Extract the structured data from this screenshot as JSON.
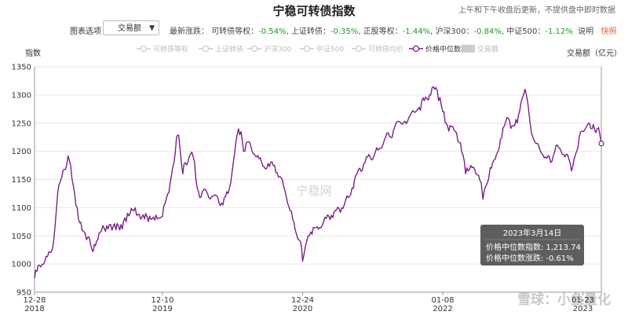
{
  "header": {
    "title": "宁稳可转债指数",
    "note": "上午和下午收盘后更新，不提供盘中即时数据"
  },
  "controls": {
    "selector_label": "图表选项",
    "selector_value": "交易额",
    "changes_prefix": "最新涨跌：",
    "changes": [
      {
        "label": "可转债等权：",
        "value": "-0.54%"
      },
      {
        "label": "上证转债：",
        "value": "-0.35%"
      },
      {
        "label": "正股等权：",
        "value": "-1.44%"
      },
      {
        "label": "沪深300：",
        "value": "-0.84%"
      },
      {
        "label": "中证500：",
        "value": "-1.12%"
      }
    ],
    "help_link": "说明",
    "snapshot_link": "快照"
  },
  "legend": [
    {
      "name": "可转债等权",
      "active": false
    },
    {
      "name": "上证转债",
      "active": false
    },
    {
      "name": "沪深300",
      "active": false
    },
    {
      "name": "中证500",
      "active": false
    },
    {
      "name": "可转债均价",
      "active": false
    },
    {
      "name": "价格中位数",
      "active": true
    },
    {
      "name": "交易额",
      "active": false
    }
  ],
  "colors": {
    "series": "#7b1f8c",
    "inactive": "#cccccc",
    "grid": "#e6e6e6",
    "tooltip_bg": "#555555"
  },
  "watermark": "宁稳网",
  "corner_watermark": "雪球：小鱼量化",
  "tooltip": {
    "date": "2023年3月14日",
    "line1_label": "价格中位数指数:",
    "line1_value": "1,213.74",
    "line2_label": "价格中位数涨跌:",
    "line2_value": "-0.61%"
  },
  "chart_data": {
    "type": "line",
    "ylabel": "指数",
    "y2label": "交易额（亿元）",
    "ylim": [
      950,
      1350
    ],
    "yticks": [
      950,
      1000,
      1050,
      1100,
      1150,
      1200,
      1250,
      1300,
      1350
    ],
    "xlim": [
      "2018-12-28",
      "2023-03-14"
    ],
    "xticks": [
      {
        "date": "2018-12-28",
        "label": "12-28",
        "year": "2018"
      },
      {
        "date": "2019-12-10",
        "label": "12-10",
        "year": "2019"
      },
      {
        "date": "2020-12-24",
        "label": "12-24",
        "year": "2020"
      },
      {
        "date": "2022-01-08",
        "label": "01-08",
        "year": "2022"
      },
      {
        "date": "2023-01-23",
        "label": "01-23",
        "year": "2023"
      }
    ],
    "grid": true,
    "series": [
      {
        "name": "价格中位数",
        "points": [
          [
            "2018-12-28",
            975
          ],
          [
            "2019-01-10",
            998
          ],
          [
            "2019-01-25",
            1005
          ],
          [
            "2019-02-12",
            1022
          ],
          [
            "2019-02-22",
            1070
          ],
          [
            "2019-03-04",
            1140
          ],
          [
            "2019-03-12",
            1155
          ],
          [
            "2019-03-22",
            1168
          ],
          [
            "2019-03-29",
            1192
          ],
          [
            "2019-04-05",
            1175
          ],
          [
            "2019-04-12",
            1140
          ],
          [
            "2019-04-19",
            1105
          ],
          [
            "2019-04-26",
            1080
          ],
          [
            "2019-05-06",
            1060
          ],
          [
            "2019-05-14",
            1055
          ],
          [
            "2019-05-22",
            1048
          ],
          [
            "2019-05-29",
            1035
          ],
          [
            "2019-06-05",
            1022
          ],
          [
            "2019-06-14",
            1040
          ],
          [
            "2019-06-28",
            1060
          ],
          [
            "2019-07-12",
            1068
          ],
          [
            "2019-07-26",
            1060
          ],
          [
            "2019-08-09",
            1072
          ],
          [
            "2019-08-23",
            1062
          ],
          [
            "2019-09-06",
            1090
          ],
          [
            "2019-09-20",
            1095
          ],
          [
            "2019-10-08",
            1088
          ],
          [
            "2019-10-22",
            1080
          ],
          [
            "2019-11-05",
            1085
          ],
          [
            "2019-11-19",
            1078
          ],
          [
            "2019-12-03",
            1082
          ],
          [
            "2019-12-10",
            1085
          ],
          [
            "2019-12-20",
            1115
          ],
          [
            "2019-12-31",
            1145
          ],
          [
            "2020-01-10",
            1180
          ],
          [
            "2020-01-17",
            1225
          ],
          [
            "2020-01-23",
            1228
          ],
          [
            "2020-02-03",
            1160
          ],
          [
            "2020-02-10",
            1180
          ],
          [
            "2020-02-24",
            1195
          ],
          [
            "2020-03-06",
            1180
          ],
          [
            "2020-03-13",
            1135
          ],
          [
            "2020-03-20",
            1118
          ],
          [
            "2020-03-27",
            1128
          ],
          [
            "2020-04-10",
            1125
          ],
          [
            "2020-04-24",
            1120
          ],
          [
            "2020-05-08",
            1118
          ],
          [
            "2020-05-22",
            1105
          ],
          [
            "2020-06-05",
            1125
          ],
          [
            "2020-06-19",
            1180
          ],
          [
            "2020-07-03",
            1240
          ],
          [
            "2020-07-10",
            1235
          ],
          [
            "2020-07-17",
            1200
          ],
          [
            "2020-07-24",
            1215
          ],
          [
            "2020-08-07",
            1205
          ],
          [
            "2020-08-21",
            1190
          ],
          [
            "2020-09-04",
            1180
          ],
          [
            "2020-09-18",
            1170
          ],
          [
            "2020-10-09",
            1175
          ],
          [
            "2020-10-23",
            1155
          ],
          [
            "2020-11-06",
            1130
          ],
          [
            "2020-11-20",
            1095
          ],
          [
            "2020-12-04",
            1060
          ],
          [
            "2020-12-18",
            1040
          ],
          [
            "2020-12-24",
            1005
          ],
          [
            "2020-12-31",
            1030
          ],
          [
            "2021-01-08",
            1050
          ],
          [
            "2021-01-22",
            1065
          ],
          [
            "2021-02-05",
            1062
          ],
          [
            "2021-02-19",
            1075
          ],
          [
            "2021-03-05",
            1085
          ],
          [
            "2021-03-19",
            1092
          ],
          [
            "2021-04-02",
            1098
          ],
          [
            "2021-04-16",
            1105
          ],
          [
            "2021-04-30",
            1120
          ],
          [
            "2021-05-14",
            1150
          ],
          [
            "2021-05-28",
            1170
          ],
          [
            "2021-06-11",
            1180
          ],
          [
            "2021-06-25",
            1190
          ],
          [
            "2021-07-09",
            1198
          ],
          [
            "2021-07-23",
            1205
          ],
          [
            "2021-08-06",
            1225
          ],
          [
            "2021-08-20",
            1225
          ],
          [
            "2021-09-03",
            1250
          ],
          [
            "2021-09-17",
            1250
          ],
          [
            "2021-10-08",
            1260
          ],
          [
            "2021-10-22",
            1270
          ],
          [
            "2021-11-05",
            1278
          ],
          [
            "2021-11-19",
            1290
          ],
          [
            "2021-12-03",
            1300
          ],
          [
            "2021-12-17",
            1310
          ],
          [
            "2021-12-24",
            1308
          ],
          [
            "2022-01-08",
            1270
          ],
          [
            "2022-01-21",
            1245
          ],
          [
            "2022-02-11",
            1235
          ],
          [
            "2022-02-25",
            1215
          ],
          [
            "2022-03-11",
            1160
          ],
          [
            "2022-03-25",
            1175
          ],
          [
            "2022-04-08",
            1160
          ],
          [
            "2022-04-22",
            1145
          ],
          [
            "2022-04-27",
            1115
          ],
          [
            "2022-05-06",
            1140
          ],
          [
            "2022-05-20",
            1170
          ],
          [
            "2022-06-03",
            1195
          ],
          [
            "2022-06-17",
            1225
          ],
          [
            "2022-06-24",
            1245
          ],
          [
            "2022-07-01",
            1260
          ],
          [
            "2022-07-15",
            1245
          ],
          [
            "2022-07-29",
            1250
          ],
          [
            "2022-08-12",
            1295
          ],
          [
            "2022-08-19",
            1310
          ],
          [
            "2022-09-02",
            1250
          ],
          [
            "2022-09-16",
            1215
          ],
          [
            "2022-09-30",
            1200
          ],
          [
            "2022-10-14",
            1190
          ],
          [
            "2022-10-28",
            1180
          ],
          [
            "2022-11-11",
            1210
          ],
          [
            "2022-11-25",
            1200
          ],
          [
            "2022-12-09",
            1195
          ],
          [
            "2022-12-23",
            1165
          ],
          [
            "2022-12-30",
            1185
          ],
          [
            "2023-01-06",
            1200
          ],
          [
            "2023-01-13",
            1225
          ],
          [
            "2023-01-23",
            1235
          ],
          [
            "2023-02-03",
            1245
          ],
          [
            "2023-02-10",
            1250
          ],
          [
            "2023-02-17",
            1240
          ],
          [
            "2023-02-24",
            1238
          ],
          [
            "2023-03-03",
            1240
          ],
          [
            "2023-03-10",
            1230
          ],
          [
            "2023-03-14",
            1213.74
          ]
        ]
      }
    ]
  }
}
